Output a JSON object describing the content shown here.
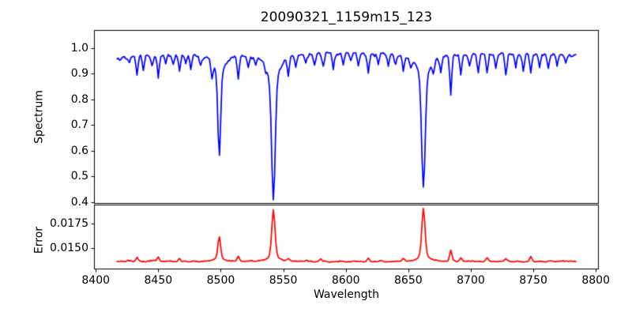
{
  "title": "20090321_1159m15_123",
  "colors": {
    "spectrum_line": "#0000ff",
    "error_line": "#ff0000",
    "axis": "#000000",
    "background": "#ffffff",
    "text": "#000000"
  },
  "x_axis": {
    "label": "Wavelength",
    "xlim": [
      8398.6,
      8802.4
    ],
    "ticks": [
      {
        "value": 8400,
        "label": "8400"
      },
      {
        "value": 8450,
        "label": "8450"
      },
      {
        "value": 8500,
        "label": "8500"
      },
      {
        "value": 8550,
        "label": "8550"
      },
      {
        "value": 8600,
        "label": "8600"
      },
      {
        "value": 8650,
        "label": "8650"
      },
      {
        "value": 8700,
        "label": "8700"
      },
      {
        "value": 8750,
        "label": "8750"
      },
      {
        "value": 8800,
        "label": "8800"
      }
    ]
  },
  "chart_data": [
    {
      "type": "line",
      "panel": "top",
      "series_name": "spectrum",
      "ylabel": "Spectrum",
      "color": "#0000ff",
      "ylim": [
        0.393,
        1.0699
      ],
      "yticks": [
        {
          "value": 1.0,
          "label": "1.0"
        },
        {
          "value": 0.9,
          "label": "0.9"
        },
        {
          "value": 0.8,
          "label": "0.8"
        },
        {
          "value": 0.7,
          "label": "0.7"
        },
        {
          "value": 0.6,
          "label": "0.6"
        },
        {
          "value": 0.5,
          "label": "0.5"
        },
        {
          "value": 0.4,
          "label": "0.4"
        }
      ],
      "x_data_range": [
        8417,
        8784
      ],
      "sample_step": 1.0,
      "noise_sigma": 0.009,
      "continuum_points": [
        [
          8417,
          0.962
        ],
        [
          8430,
          0.97
        ],
        [
          8460,
          0.975
        ],
        [
          8490,
          0.978
        ],
        [
          8520,
          0.98
        ],
        [
          8560,
          0.983
        ],
        [
          8600,
          0.983
        ],
        [
          8640,
          0.982
        ],
        [
          8660,
          0.98
        ],
        [
          8700,
          0.978
        ],
        [
          8740,
          0.977
        ],
        [
          8784,
          0.972
        ]
      ],
      "major_lines_format": [
        "center_angstrom",
        "min_flux",
        "core_sigma",
        "wing_width",
        "wing_fraction"
      ],
      "major_lines": [
        [
          8498.8,
          0.577,
          1.1,
          5.0,
          0.2
        ],
        [
          8542.1,
          0.412,
          1.4,
          5.5,
          0.2
        ],
        [
          8662.1,
          0.455,
          1.4,
          5.5,
          0.2
        ]
      ],
      "small_line_sigma": 0.8,
      "small_lines_format": [
        "center_angstrom",
        "min_flux"
      ],
      "small_lines": [
        [
          8427,
          0.945
        ],
        [
          8433,
          0.895
        ],
        [
          8438,
          0.915
        ],
        [
          8445,
          0.93
        ],
        [
          8450,
          0.895
        ],
        [
          8456,
          0.94
        ],
        [
          8462,
          0.935
        ],
        [
          8467,
          0.91
        ],
        [
          8472,
          0.94
        ],
        [
          8476,
          0.93
        ],
        [
          8484,
          0.945
        ],
        [
          8493,
          0.915
        ],
        [
          8514,
          0.89
        ],
        [
          8522,
          0.935
        ],
        [
          8528,
          0.95
        ],
        [
          8536,
          0.95
        ],
        [
          8554,
          0.915
        ],
        [
          8560,
          0.94
        ],
        [
          8568,
          0.945
        ],
        [
          8575,
          0.94
        ],
        [
          8582,
          0.93
        ],
        [
          8590,
          0.92
        ],
        [
          8598,
          0.94
        ],
        [
          8604,
          0.95
        ],
        [
          8610,
          0.93
        ],
        [
          8618,
          0.91
        ],
        [
          8626,
          0.94
        ],
        [
          8634,
          0.93
        ],
        [
          8640,
          0.945
        ],
        [
          8646,
          0.92
        ],
        [
          8652,
          0.945
        ],
        [
          8670,
          0.93
        ],
        [
          8676,
          0.92
        ],
        [
          8684,
          0.82
        ],
        [
          8692,
          0.9
        ],
        [
          8699,
          0.93
        ],
        [
          8706,
          0.91
        ],
        [
          8713,
          0.9
        ],
        [
          8720,
          0.92
        ],
        [
          8728,
          0.9
        ],
        [
          8736,
          0.93
        ],
        [
          8742,
          0.91
        ],
        [
          8748,
          0.9
        ],
        [
          8755,
          0.93
        ],
        [
          8762,
          0.92
        ],
        [
          8769,
          0.93
        ],
        [
          8776,
          0.945
        ]
      ]
    },
    {
      "type": "line",
      "panel": "bottom",
      "series_name": "error",
      "ylabel": "Error",
      "color": "#ff0000",
      "ylim": [
        0.012823,
        0.019435
      ],
      "yticks": [
        {
          "value": 0.0175,
          "label": "0.0175"
        },
        {
          "value": 0.015,
          "label": "0.0150"
        }
      ],
      "x_data_range": [
        8417,
        8784
      ],
      "sample_step": 1.0,
      "baseline": 0.01363,
      "noise_sigma": 0.0001,
      "peaks_format": [
        "center_angstrom",
        "amplitude",
        "core_sigma",
        "wing_width",
        "wing_fraction"
      ],
      "peaks": [
        [
          8433,
          0.0004
        ],
        [
          8450,
          0.0005
        ],
        [
          8467,
          0.0003
        ],
        [
          8498.8,
          0.0025,
          1.0,
          2.5,
          0.3
        ],
        [
          8514,
          0.0005
        ],
        [
          8542.1,
          0.0053,
          1.2,
          2.5,
          0.3
        ],
        [
          8554,
          0.0003
        ],
        [
          8580,
          0.0003
        ],
        [
          8618,
          0.0004
        ],
        [
          8646,
          0.0003
        ],
        [
          8662.1,
          0.0054,
          1.2,
          2.5,
          0.3
        ],
        [
          8684,
          0.0011
        ],
        [
          8692,
          0.0003
        ],
        [
          8713,
          0.0004
        ],
        [
          8728,
          0.0003
        ],
        [
          8748,
          0.0004
        ]
      ]
    }
  ]
}
